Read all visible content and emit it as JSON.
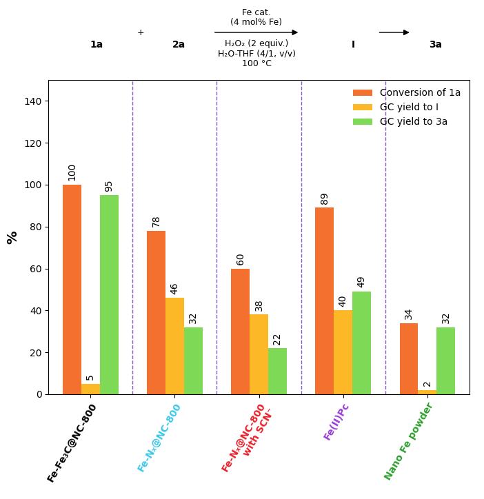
{
  "chart_data": {
    "type": "bar",
    "y_label": "%",
    "categories": [
      "Fe-Fe₃C@NC-800",
      "Fe-Nₓ@NC-800",
      "Fe-Nₓ@NC-800\nwith SCN⁻",
      "Fe(II)Pc",
      "Nano Fe powder"
    ],
    "series": [
      {
        "name": "Conversion of 1a",
        "color": "#F4702F",
        "values": [
          100,
          78,
          60,
          89,
          34
        ]
      },
      {
        "name": "GC yield to I",
        "color": "#FDB827",
        "values": [
          5,
          46,
          38,
          40,
          2
        ]
      },
      {
        "name": "GC yield to 3a",
        "color": "#7ED957",
        "values": [
          95,
          32,
          22,
          49,
          32
        ]
      }
    ],
    "ylim": [
      0,
      150
    ],
    "yticks": [
      0,
      20,
      40,
      60,
      80,
      100,
      120,
      140
    ],
    "legend": "upper right",
    "data_labels": true,
    "grid": false,
    "annotations": [
      "1a",
      "+",
      "2a",
      "Fe cat.",
      "(4 mol% Fe)",
      "H₂O₂ (2 equiv.)",
      "H₂O-THF (4/1, v/v)",
      "100 °C",
      "I",
      "3a"
    ]
  }
}
